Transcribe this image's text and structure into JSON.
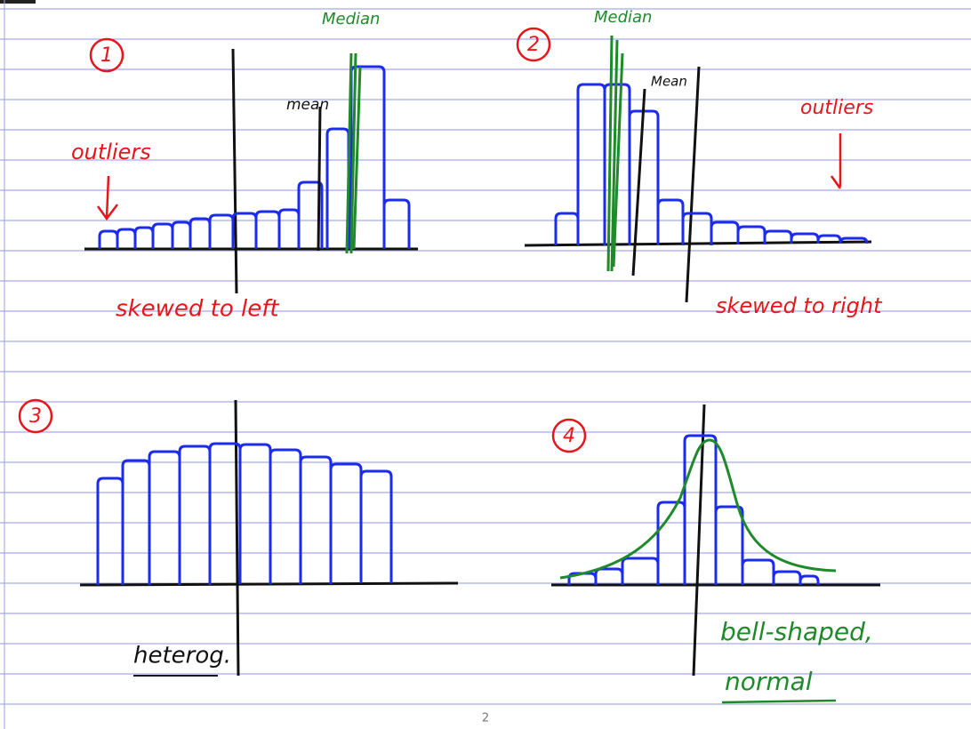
{
  "sketches": [
    {
      "number": "1",
      "median": "Median",
      "mean": "mean",
      "outliers": "outliers",
      "caption": "skewed to left"
    },
    {
      "number": "2",
      "median": "Median",
      "mean": "Mean",
      "outliers": "outliers",
      "caption": "skewed to right"
    },
    {
      "number": "3",
      "caption": "heterog."
    },
    {
      "number": "4",
      "caption": "bell-shaped,",
      "caption2": "normal"
    }
  ],
  "page_number": "2"
}
